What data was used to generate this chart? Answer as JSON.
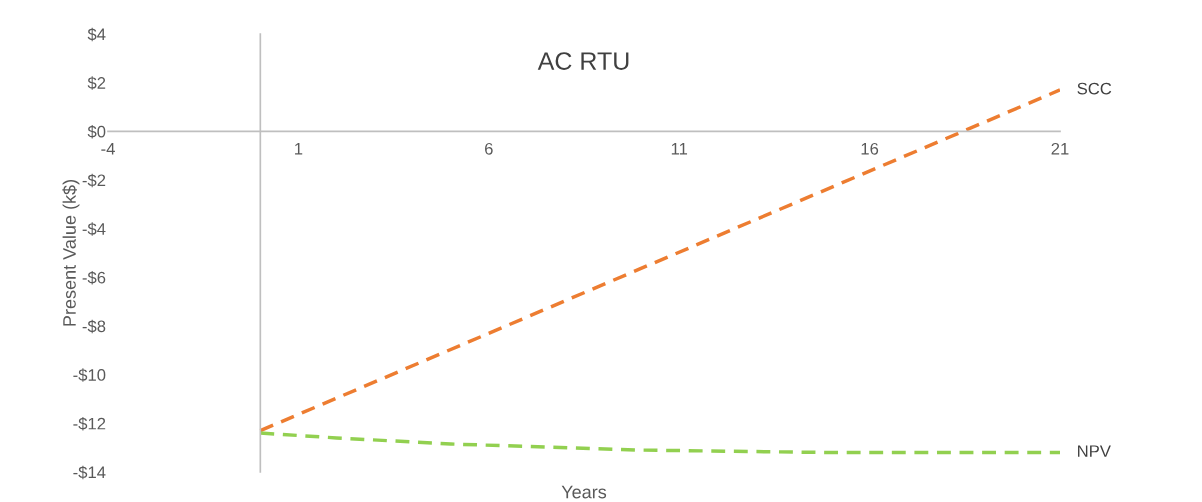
{
  "chart_data": {
    "type": "line",
    "title": "AC RTU",
    "xlabel": "Years",
    "ylabel": "Present Value (k$)",
    "xlim": [
      -4,
      21
    ],
    "xticks": [
      -4,
      1,
      6,
      11,
      16,
      21
    ],
    "ylim": [
      -14,
      4
    ],
    "yticks": [
      {
        "value": 4,
        "label": "$4"
      },
      {
        "value": 2,
        "label": "$2"
      },
      {
        "value": 0,
        "label": "$0"
      },
      {
        "value": -2,
        "label": "-$2"
      },
      {
        "value": -4,
        "label": "-$4"
      },
      {
        "value": -6,
        "label": "-$6"
      },
      {
        "value": -8,
        "label": "-$8"
      },
      {
        "value": -10,
        "label": "-$10"
      },
      {
        "value": -12,
        "label": "-$12"
      },
      {
        "value": -14,
        "label": "-$14"
      }
    ],
    "grid": false,
    "legend": false,
    "marker": "none",
    "line_style": "dashed",
    "series": [
      {
        "name": "SCC",
        "color": "#ed7d31",
        "x": [
          0,
          21
        ],
        "values": [
          -12.3,
          1.7
        ]
      },
      {
        "name": "NPV",
        "color": "#92d050",
        "x": [
          0,
          2,
          5,
          10,
          15,
          21
        ],
        "values": [
          -12.4,
          -12.6,
          -12.85,
          -13.1,
          -13.2,
          -13.2
        ]
      }
    ]
  }
}
